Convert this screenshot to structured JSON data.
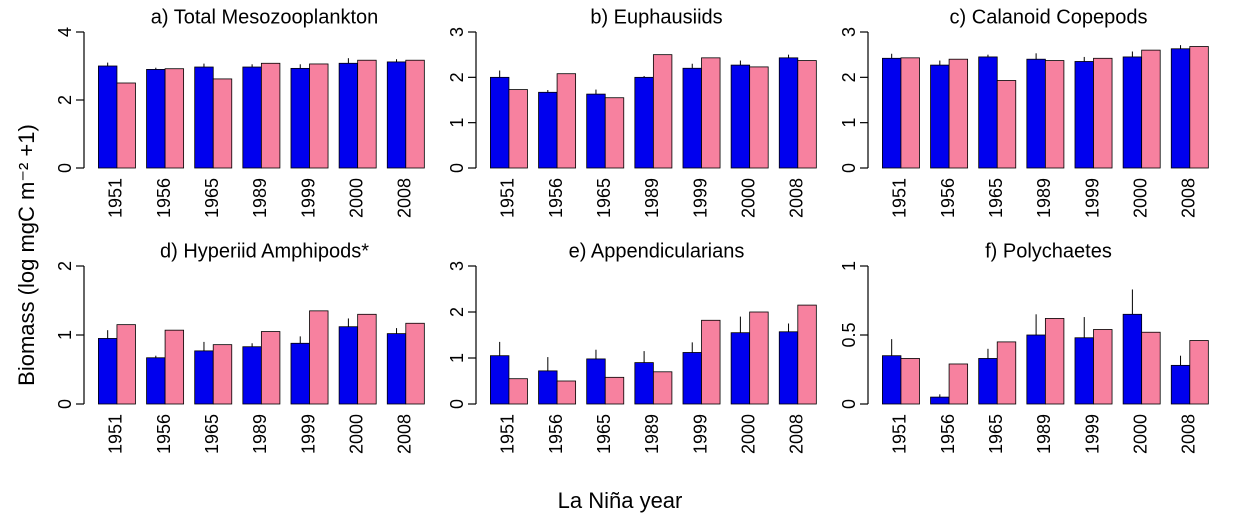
{
  "ylabel": "Biomass (log mgC m⁻² +1)",
  "xlabel": "La Niña year",
  "chart_data": [
    {
      "type": "bar",
      "title": "a) Total Mesozooplankton",
      "categories": [
        "1951",
        "1956",
        "1965",
        "1989",
        "1999",
        "2000",
        "2008"
      ],
      "series": [
        {
          "color": "#0000ee",
          "values": [
            3.0,
            2.9,
            2.97,
            2.97,
            2.93,
            3.08,
            3.12
          ],
          "errors": [
            0.1,
            0.05,
            0.1,
            0.08,
            0.12,
            0.15,
            0.08
          ]
        },
        {
          "color": "#f7819f",
          "values": [
            2.5,
            2.92,
            2.62,
            3.08,
            3.06,
            3.17,
            3.17
          ]
        }
      ],
      "ylim": [
        0,
        4
      ],
      "yticks": [
        0,
        2,
        4
      ]
    },
    {
      "type": "bar",
      "title": "b) Euphausiids",
      "categories": [
        "1951",
        "1956",
        "1965",
        "1989",
        "1999",
        "2000",
        "2008"
      ],
      "series": [
        {
          "color": "#0000ee",
          "values": [
            2.0,
            1.67,
            1.63,
            2.0,
            2.2,
            2.27,
            2.43
          ],
          "errors": [
            0.15,
            0.05,
            0.1,
            0.03,
            0.1,
            0.1,
            0.07
          ]
        },
        {
          "color": "#f7819f",
          "values": [
            1.73,
            2.08,
            1.55,
            2.5,
            2.43,
            2.23,
            2.37
          ]
        }
      ],
      "ylim": [
        0,
        3
      ],
      "yticks": [
        0,
        1,
        2,
        3
      ]
    },
    {
      "type": "bar",
      "title": "c) Calanoid Copepods",
      "categories": [
        "1951",
        "1956",
        "1965",
        "1989",
        "1999",
        "2000",
        "2008"
      ],
      "series": [
        {
          "color": "#0000ee",
          "values": [
            2.42,
            2.27,
            2.45,
            2.4,
            2.35,
            2.45,
            2.63
          ],
          "errors": [
            0.1,
            0.1,
            0.05,
            0.13,
            0.1,
            0.12,
            0.08
          ]
        },
        {
          "color": "#f7819f",
          "values": [
            2.43,
            2.4,
            1.93,
            2.37,
            2.42,
            2.6,
            2.68
          ]
        }
      ],
      "ylim": [
        0,
        3
      ],
      "yticks": [
        0,
        1,
        2,
        3
      ]
    },
    {
      "type": "bar",
      "title": "d) Hyperiid Amphipods*",
      "categories": [
        "1951",
        "1956",
        "1965",
        "1989",
        "1999",
        "2000",
        "2008"
      ],
      "series": [
        {
          "color": "#0000ee",
          "values": [
            0.95,
            0.67,
            0.77,
            0.83,
            0.88,
            1.12,
            1.02
          ],
          "errors": [
            0.12,
            0.03,
            0.13,
            0.05,
            0.1,
            0.12,
            0.08
          ]
        },
        {
          "color": "#f7819f",
          "values": [
            1.15,
            1.07,
            0.86,
            1.05,
            1.35,
            1.3,
            1.17
          ]
        }
      ],
      "ylim": [
        0,
        2
      ],
      "yticks": [
        0,
        1,
        2
      ]
    },
    {
      "type": "bar",
      "title": "e) Appendicularians",
      "categories": [
        "1951",
        "1956",
        "1965",
        "1989",
        "1999",
        "2000",
        "2008"
      ],
      "series": [
        {
          "color": "#0000ee",
          "values": [
            1.05,
            0.72,
            0.98,
            0.9,
            1.12,
            1.55,
            1.57
          ],
          "errors": [
            0.3,
            0.3,
            0.2,
            0.25,
            0.22,
            0.35,
            0.18
          ]
        },
        {
          "color": "#f7819f",
          "values": [
            0.55,
            0.5,
            0.58,
            0.7,
            1.82,
            2.0,
            2.15
          ]
        }
      ],
      "ylim": [
        0,
        3
      ],
      "yticks": [
        0,
        1,
        2,
        3
      ]
    },
    {
      "type": "bar",
      "title": "f) Polychaetes",
      "categories": [
        "1951",
        "1956",
        "1965",
        "1989",
        "1999",
        "2000",
        "2008"
      ],
      "series": [
        {
          "color": "#0000ee",
          "values": [
            0.35,
            0.05,
            0.33,
            0.5,
            0.48,
            0.65,
            0.28
          ],
          "errors": [
            0.12,
            0.02,
            0.07,
            0.15,
            0.15,
            0.18,
            0.07
          ]
        },
        {
          "color": "#f7819f",
          "values": [
            0.33,
            0.29,
            0.45,
            0.62,
            0.54,
            0.52,
            0.46
          ]
        }
      ],
      "ylim": [
        0,
        1
      ],
      "yticks": [
        0,
        0.5,
        1
      ]
    }
  ]
}
